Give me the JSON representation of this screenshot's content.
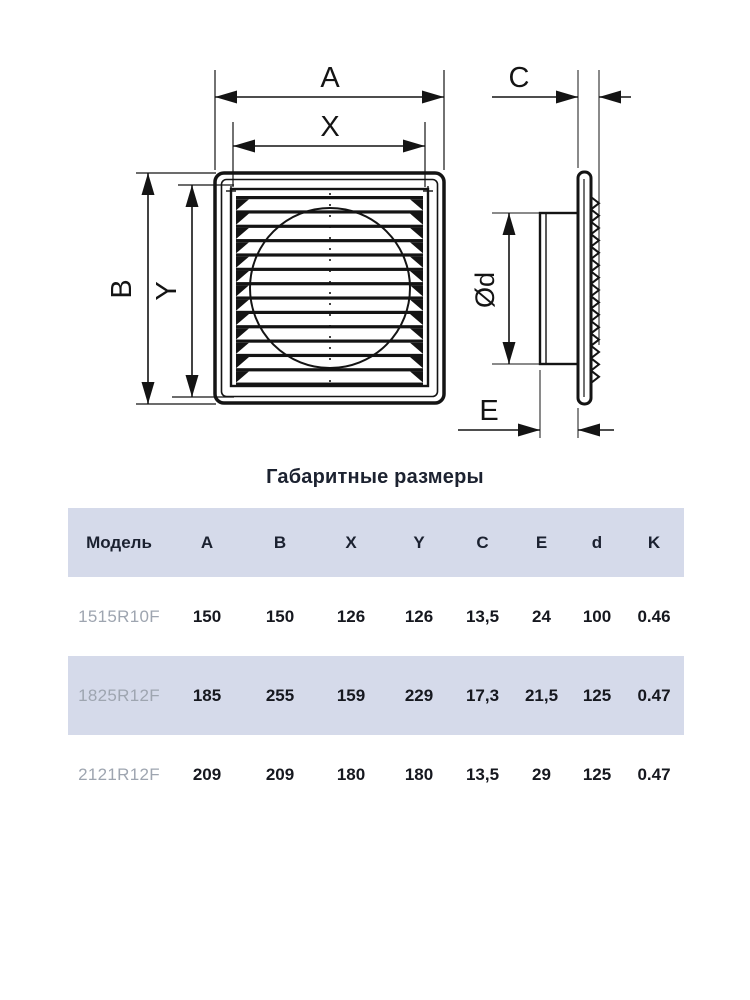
{
  "title": "Габаритные размеры",
  "drawing": {
    "dim_labels": {
      "A": "A",
      "X": "X",
      "B": "B",
      "Y": "Y",
      "C": "C",
      "diameter": "Ød",
      "E": "E"
    }
  },
  "table": {
    "columns": [
      "Модель",
      "A",
      "B",
      "X",
      "Y",
      "C",
      "E",
      "d",
      "K"
    ],
    "rows": [
      {
        "model": "1515R10F",
        "values": [
          "150",
          "150",
          "126",
          "126",
          "13,5",
          "24",
          "100",
          "0.46"
        ]
      },
      {
        "model": "1825R12F",
        "values": [
          "185",
          "255",
          "159",
          "229",
          "17,3",
          "21,5",
          "125",
          "0.47"
        ]
      },
      {
        "model": "2121R12F",
        "values": [
          "209",
          "209",
          "180",
          "180",
          "13,5",
          "29",
          "125",
          "0.47"
        ]
      }
    ]
  },
  "colors": {
    "table_stripe": "#d5daea",
    "drawing_line": "#141414",
    "model_text": "#9ea5b0",
    "value_text": "#16181f",
    "background": "#ffffff"
  }
}
